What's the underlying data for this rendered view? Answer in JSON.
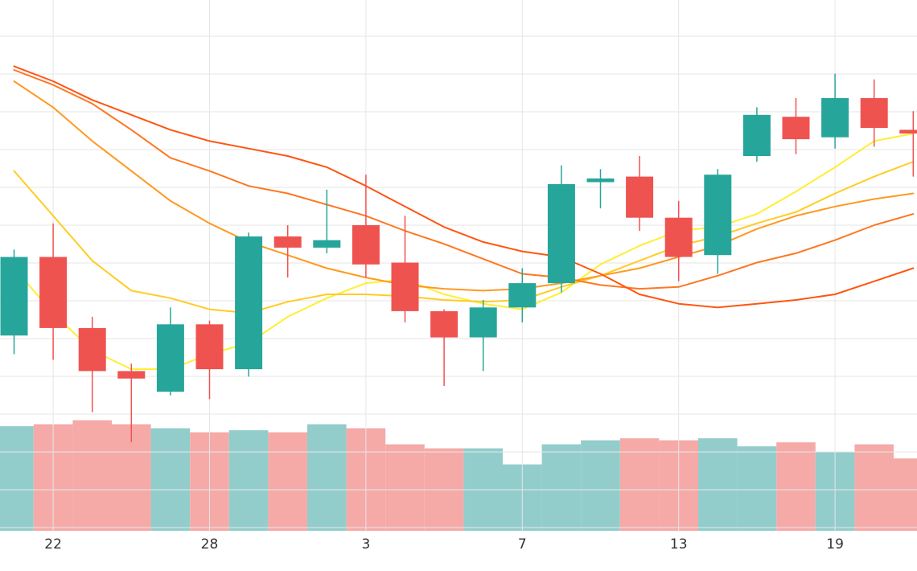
{
  "chart_data": {
    "type": "candlestick",
    "title": "",
    "xlabel": "",
    "ylabel": "",
    "x_tick_labels": [
      "22",
      "28",
      "3",
      "7",
      "13",
      "19"
    ],
    "x_tick_indices": [
      1,
      5,
      9,
      13,
      17,
      21
    ],
    "ylim": [
      0,
      100
    ],
    "grid": true,
    "legend": "none",
    "candles": [
      {
        "i": 0,
        "open": 52.0,
        "close": 73.0,
        "high": 75.0,
        "low": 47.0
      },
      {
        "i": 1,
        "open": 73.0,
        "close": 54.0,
        "high": 82.0,
        "low": 45.5
      },
      {
        "i": 2,
        "open": 54.0,
        "close": 42.5,
        "high": 57.0,
        "low": 31.5
      },
      {
        "i": 3,
        "open": 42.5,
        "close": 40.5,
        "high": 44.5,
        "low": 23.5
      },
      {
        "i": 4,
        "open": 37.0,
        "close": 55.0,
        "high": 59.5,
        "low": 36.0
      },
      {
        "i": 5,
        "open": 55.0,
        "close": 43.0,
        "high": 56.0,
        "low": 35.0
      },
      {
        "i": 6,
        "open": 43.0,
        "close": 78.5,
        "high": 79.5,
        "low": 41.0
      },
      {
        "i": 7,
        "open": 78.5,
        "close": 75.5,
        "high": 81.5,
        "low": 67.5
      },
      {
        "i": 8,
        "open": 75.5,
        "close": 77.5,
        "high": 91.0,
        "low": 74.0
      },
      {
        "i": 9,
        "open": 81.5,
        "close": 71.0,
        "high": 95.0,
        "low": 67.5
      },
      {
        "i": 10,
        "open": 71.5,
        "close": 58.5,
        "high": 84.0,
        "low": 55.5
      },
      {
        "i": 11,
        "open": 58.5,
        "close": 51.5,
        "high": 59.0,
        "low": 38.5
      },
      {
        "i": 12,
        "open": 51.5,
        "close": 59.5,
        "high": 61.5,
        "low": 42.5
      },
      {
        "i": 13,
        "open": 59.5,
        "close": 66.0,
        "high": 70.0,
        "low": 55.5
      },
      {
        "i": 14,
        "open": 66.0,
        "close": 92.5,
        "high": 97.5,
        "low": 63.5
      },
      {
        "i": 15,
        "open": 93.0,
        "close": 94.0,
        "high": 96.5,
        "low": 86.0
      },
      {
        "i": 16,
        "open": 94.5,
        "close": 83.5,
        "high": 100.0,
        "low": 80.0
      },
      {
        "i": 17,
        "open": 83.5,
        "close": 73.0,
        "high": 88.0,
        "low": 66.5
      },
      {
        "i": 18,
        "open": 73.5,
        "close": 95.0,
        "high": 96.5,
        "low": 68.5
      },
      {
        "i": 19,
        "open": 100.0,
        "close": 111.0,
        "high": 113.0,
        "low": 98.5
      },
      {
        "i": 20,
        "open": 110.5,
        "close": 104.5,
        "high": 115.5,
        "low": 100.5
      },
      {
        "i": 21,
        "open": 105.0,
        "close": 115.5,
        "high": 122.0,
        "low": 102.0
      },
      {
        "i": 22,
        "open": 115.5,
        "close": 107.5,
        "high": 120.5,
        "low": 102.5
      },
      {
        "i": 23,
        "open": 107.0,
        "close": 106.0,
        "high": 112.0,
        "low": 94.5
      }
    ],
    "volumes": [
      26,
      26.5,
      27.5,
      26.5,
      25.5,
      24.5,
      25,
      24.5,
      26.5,
      25.5,
      21.5,
      20.5,
      20.5,
      16.5,
      21.5,
      22.5,
      23,
      22.5,
      23,
      21,
      22,
      19.5,
      21.5,
      18
    ],
    "moving_averages": [
      {
        "color": "#ffee33",
        "values": [
          70,
          58,
          48,
          43,
          43,
          47,
          50,
          57,
          62,
          66,
          67,
          63,
          60.5,
          59,
          63.5,
          71,
          76,
          80,
          81,
          84.5,
          90.5,
          97,
          104,
          106
        ]
      },
      {
        "color": "#ffcc22",
        "values": [
          96,
          84,
          72,
          64,
          62,
          59,
          58,
          61,
          63,
          63,
          62.5,
          61.5,
          61,
          61.5,
          65,
          68,
          72,
          76,
          78.5,
          82,
          85,
          90,
          94.5,
          98.5
        ]
      },
      {
        "color": "#ff9922",
        "values": [
          120,
          113,
          104,
          96,
          88,
          82,
          77,
          73.5,
          70,
          67.5,
          65.5,
          64.5,
          64,
          64.5,
          66,
          68,
          70,
          73,
          76,
          80.5,
          84,
          86.5,
          88.5,
          90
        ]
      },
      {
        "color": "#ff7722",
        "values": [
          123,
          119,
          114,
          107,
          99.5,
          96,
          92,
          90,
          87,
          84,
          80,
          76.5,
          72.5,
          68.5,
          67.5,
          65.5,
          64.5,
          65,
          68,
          71.5,
          74,
          77.5,
          81.5,
          84.5
        ]
      },
      {
        "color": "#ff5511",
        "values": [
          124,
          120,
          115,
          111,
          107,
          104,
          102,
          100,
          97,
          92,
          86.5,
          81,
          77,
          74.5,
          73,
          68.5,
          63,
          60.5,
          59.5,
          60.5,
          61.5,
          63,
          66.5,
          70
        ]
      }
    ],
    "colors": {
      "up": "#26a69a",
      "down": "#ef5350",
      "up_volume": "#92cdcc",
      "down_volume": "#f5aaa8",
      "grid": "#e6e6e6"
    }
  }
}
